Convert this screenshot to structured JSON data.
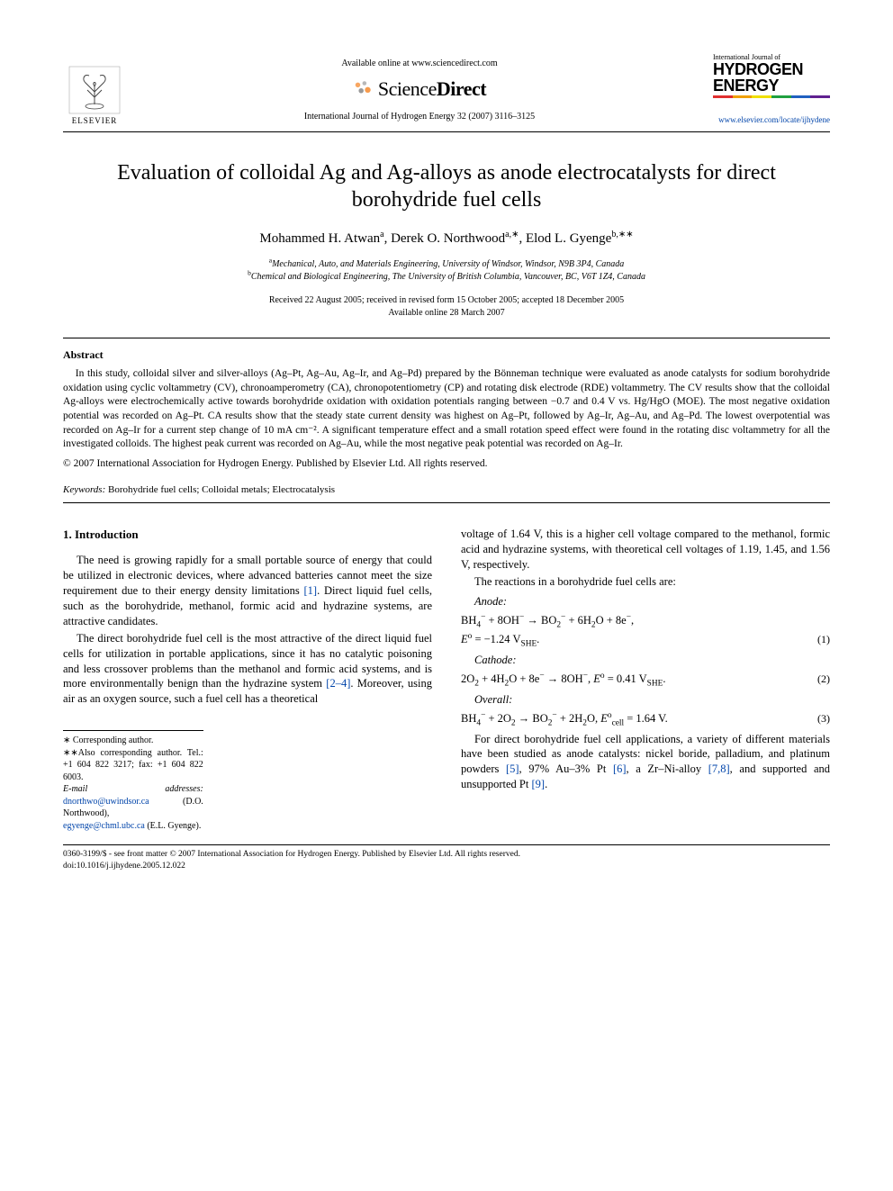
{
  "header": {
    "available_text": "Available online at www.sciencedirect.com",
    "sciencedirect": {
      "prefix": "Science",
      "suffix": "Direct"
    },
    "journal_line": "International Journal of Hydrogen Energy 32 (2007) 3116–3125",
    "elsevier_label": "ELSEVIER",
    "locate_url": "www.elsevier.com/locate/ijhydene",
    "hydrogen": {
      "line1": "International Journal of",
      "line2": "HYDROGEN",
      "line3": "ENERGY",
      "stripe_colors": [
        "#e03030",
        "#f0a000",
        "#f0e000",
        "#20a040",
        "#2060c0",
        "#602090"
      ]
    }
  },
  "title": "Evaluation of colloidal Ag and Ag-alloys as anode electrocatalysts for direct borohydride fuel cells",
  "authors_html": "Mohammed H. Atwan<sup>a</sup>, Derek O. Northwood<sup>a,∗</sup>, Elod L. Gyenge<sup>b,∗∗</sup>",
  "affiliations": {
    "a": "Mechanical, Auto, and Materials Engineering, University of Windsor, Windsor, N9B 3P4, Canada",
    "b": "Chemical and Biological Engineering, The University of British Columbia, Vancouver, BC, V6T 1Z4, Canada"
  },
  "dates": {
    "line1": "Received 22 August 2005; received in revised form 15 October 2005; accepted 18 December 2005",
    "line2": "Available online 28 March 2007"
  },
  "abstract": {
    "heading": "Abstract",
    "body": "In this study, colloidal silver and silver-alloys (Ag–Pt, Ag–Au, Ag–Ir, and Ag–Pd) prepared by the Bönneman technique were evaluated as anode catalysts for sodium borohydride oxidation using cyclic voltammetry (CV), chronoamperometry (CA), chronopotentiometry (CP) and rotating disk electrode (RDE) voltammetry. The CV results show that the colloidal Ag-alloys were electrochemically active towards borohydride oxidation with oxidation potentials ranging between −0.7 and 0.4 V vs. Hg/HgO (MOE). The most negative oxidation potential was recorded on Ag–Pt. CA results show that the steady state current density was highest on Ag–Pt, followed by Ag–Ir, Ag–Au, and Ag–Pd. The lowest overpotential was recorded on Ag–Ir for a current step change of 10 mA cm⁻². A significant temperature effect and a small rotation speed effect were found in the rotating disc voltammetry for all the investigated colloids. The highest peak current was recorded on Ag–Au, while the most negative peak potential was recorded on Ag–Ir.",
    "copyright": "© 2007 International Association for Hydrogen Energy. Published by Elsevier Ltd. All rights reserved."
  },
  "keywords": {
    "label": "Keywords:",
    "text": "Borohydride fuel cells; Colloidal metals; Electrocatalysis"
  },
  "section1": {
    "heading": "1. Introduction",
    "p1": "The need is growing rapidly for a small portable source of energy that could be utilized in electronic devices, where advanced batteries cannot meet the size requirement due to their energy density limitations [1]. Direct liquid fuel cells, such as the borohydride, methanol, formic acid and hydrazine systems, are attractive candidates.",
    "p2": "The direct borohydride fuel cell is the most attractive of the direct liquid fuel cells for utilization in portable applications, since it has no catalytic poisoning and less crossover problems than the methanol and formic acid systems, and is more environmentally benign than the hydrazine system [2–4]. Moreover, using air as an oxygen source, such a fuel cell has a theoretical",
    "p2b": "voltage of 1.64 V, this is a higher cell voltage compared to the methanol, formic acid and hydrazine systems, with theoretical cell voltages of 1.19, 1.45, and 1.56 V, respectively.",
    "p3": "The reactions in a borohydride fuel cells are:",
    "anode_label": "Anode:",
    "eq1": "BH₄⁻ + 8OH⁻ → BO₂⁻ + 6H₂O + 8e⁻,",
    "eq1b": "Eᵒ = −1.24 V_SHE.",
    "eq1n": "(1)",
    "cathode_label": "Cathode:",
    "eq2": "2O₂ + 4H₂O + 8e⁻ → 8OH⁻,    Eᵒ = 0.41 V_SHE.",
    "eq2n": "(2)",
    "overall_label": "Overall:",
    "eq3": "BH₄⁻ + 2O₂ → BO₂⁻ + 2H₂O,    Eᵒ_cell = 1.64 V.",
    "eq3n": "(3)",
    "p4": "For direct borohydride fuel cell applications, a variety of different materials have been studied as anode catalysts: nickel boride, palladium, and platinum powders [5], 97% Au–3% Pt [6], a Zr–Ni-alloy [7,8], and supported and unsupported Pt [9]."
  },
  "footnotes": {
    "l1": "∗ Corresponding author.",
    "l2": "∗∗Also corresponding author. Tel.: +1 604 822 3217; fax: +1 604 822 6003.",
    "l3label": "E-mail addresses:",
    "email1": "dnorthwo@uwindsor.ca",
    "email1_who": "(D.O. Northwood),",
    "email2": "egyenge@chml.ubc.ca",
    "email2_who": "(E.L. Gyenge)."
  },
  "footer": {
    "line1": "0360-3199/$ - see front matter © 2007 International Association for Hydrogen Energy. Published by Elsevier Ltd. All rights reserved.",
    "line2": "doi:10.1016/j.ijhydene.2005.12.022"
  },
  "colors": {
    "link": "#0044aa",
    "text": "#000000",
    "bg": "#ffffff",
    "sd_orange": "#f58220"
  }
}
